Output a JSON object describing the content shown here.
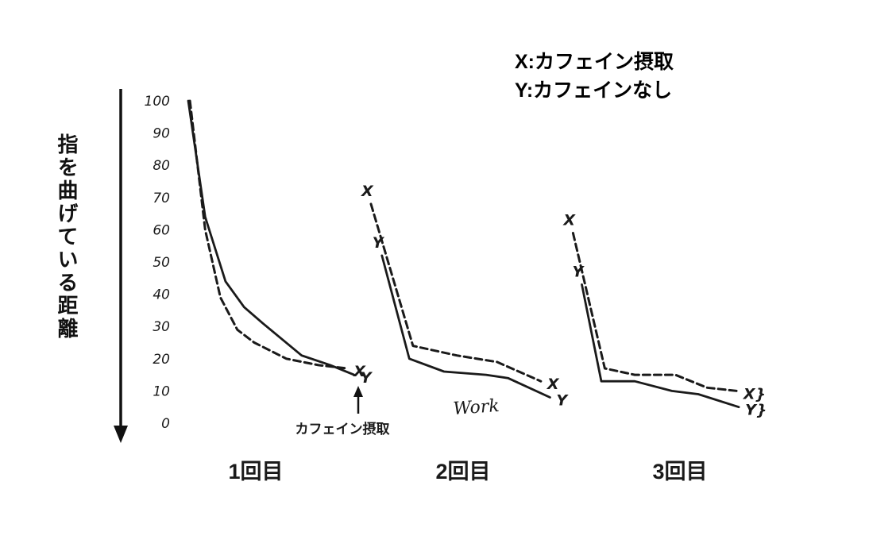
{
  "figure": {
    "background": "#ffffff",
    "ink_color": "#1a1a1a"
  },
  "legend": {
    "line1": "X:カフェイン摂取",
    "line2": "Y:カフェインなし"
  },
  "y_axis": {
    "label": "指を曲げている距離",
    "ticks": [
      "100",
      "90",
      "80",
      "70",
      "60",
      "50",
      "40",
      "30",
      "20",
      "10",
      "0"
    ]
  },
  "annotations": {
    "arrow_label": "カフェイン摂取",
    "work_label": "Work"
  },
  "chart_data": {
    "type": "line",
    "title": "",
    "xlabel": "",
    "ylabel": "指を曲げている距離",
    "ylim": [
      0,
      100
    ],
    "y_ticks": [
      100,
      90,
      80,
      70,
      60,
      50,
      40,
      30,
      20,
      10,
      0
    ],
    "grid": false,
    "legend_position": "top-right",
    "legend": [
      {
        "series": "X",
        "meaning": "カフェイン摂取",
        "style": "dashed"
      },
      {
        "series": "Y",
        "meaning": "カフェインなし",
        "style": "solid"
      }
    ],
    "trials": [
      {
        "label": "1回目",
        "series": [
          {
            "name": "X",
            "style": "dashed",
            "start_label": "",
            "end_label": "X",
            "points": [
              [
                0.01,
                100
              ],
              [
                0.1,
                60
              ],
              [
                0.19,
                39
              ],
              [
                0.29,
                29
              ],
              [
                0.39,
                25
              ],
              [
                0.58,
                20
              ],
              [
                0.77,
                18
              ],
              [
                0.94,
                17
              ]
            ]
          },
          {
            "name": "Y",
            "style": "solid",
            "start_label": "",
            "end_label": "Y",
            "points": [
              [
                0.0,
                100
              ],
              [
                0.1,
                64
              ],
              [
                0.22,
                44
              ],
              [
                0.33,
                36
              ],
              [
                0.44,
                31
              ],
              [
                0.67,
                21
              ],
              [
                0.84,
                18
              ],
              [
                0.98,
                15
              ]
            ]
          }
        ]
      },
      {
        "label": "2回目",
        "series": [
          {
            "name": "X",
            "style": "dashed",
            "start_label": "X",
            "end_label": "X",
            "points": [
              [
                0.0,
                68
              ],
              [
                0.23,
                24
              ],
              [
                0.47,
                21
              ],
              [
                0.69,
                19
              ],
              [
                0.93,
                13
              ]
            ]
          },
          {
            "name": "Y",
            "style": "solid",
            "start_label": "Y",
            "end_label": "Y",
            "points": [
              [
                0.06,
                52
              ],
              [
                0.21,
                20
              ],
              [
                0.4,
                16
              ],
              [
                0.63,
                15
              ],
              [
                0.75,
                14
              ],
              [
                0.98,
                8
              ]
            ]
          }
        ]
      },
      {
        "label": "3回目",
        "series": [
          {
            "name": "X",
            "style": "dashed",
            "start_label": "X",
            "end_label": "X}",
            "points": [
              [
                0.02,
                59
              ],
              [
                0.2,
                17
              ],
              [
                0.37,
                15
              ],
              [
                0.6,
                15
              ],
              [
                0.78,
                11
              ],
              [
                0.95,
                10
              ]
            ]
          },
          {
            "name": "Y",
            "style": "solid",
            "start_label": "Y",
            "end_label": "Y}",
            "points": [
              [
                0.07,
                43
              ],
              [
                0.18,
                13
              ],
              [
                0.37,
                13
              ],
              [
                0.58,
                10
              ],
              [
                0.73,
                9
              ],
              [
                0.96,
                5
              ]
            ]
          }
        ]
      }
    ]
  }
}
